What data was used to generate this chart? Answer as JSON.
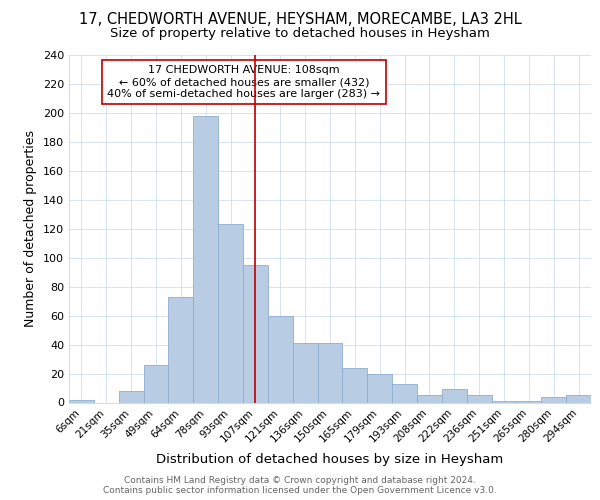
{
  "title": "17, CHEDWORTH AVENUE, HEYSHAM, MORECAMBE, LA3 2HL",
  "subtitle": "Size of property relative to detached houses in Heysham",
  "xlabel": "Distribution of detached houses by size in Heysham",
  "ylabel": "Number of detached properties",
  "categories": [
    "6sqm",
    "21sqm",
    "35sqm",
    "49sqm",
    "64sqm",
    "78sqm",
    "93sqm",
    "107sqm",
    "121sqm",
    "136sqm",
    "150sqm",
    "165sqm",
    "179sqm",
    "193sqm",
    "208sqm",
    "222sqm",
    "236sqm",
    "251sqm",
    "265sqm",
    "280sqm",
    "294sqm"
  ],
  "values": [
    2,
    0,
    8,
    26,
    73,
    198,
    123,
    95,
    60,
    41,
    41,
    24,
    20,
    13,
    5,
    9,
    5,
    1,
    1,
    4,
    5
  ],
  "bar_color": "#b8cce4",
  "bar_edge_color": "#8eaed0",
  "property_line_label": "17 CHEDWORTH AVENUE: 108sqm",
  "annotation_line1": "← 60% of detached houses are smaller (432)",
  "annotation_line2": "40% of semi-detached houses are larger (283) →",
  "vline_color": "#c00000",
  "box_edge_color": "#c00000",
  "vline_index": 7,
  "ylim": [
    0,
    240
  ],
  "yticks": [
    0,
    20,
    40,
    60,
    80,
    100,
    120,
    140,
    160,
    180,
    200,
    220,
    240
  ],
  "footnote1": "Contains HM Land Registry data © Crown copyright and database right 2024.",
  "footnote2": "Contains public sector information licensed under the Open Government Licence v3.0.",
  "title_fontsize": 10.5,
  "subtitle_fontsize": 9.5,
  "background_color": "#ffffff",
  "grid_color": "#c8d8ec"
}
